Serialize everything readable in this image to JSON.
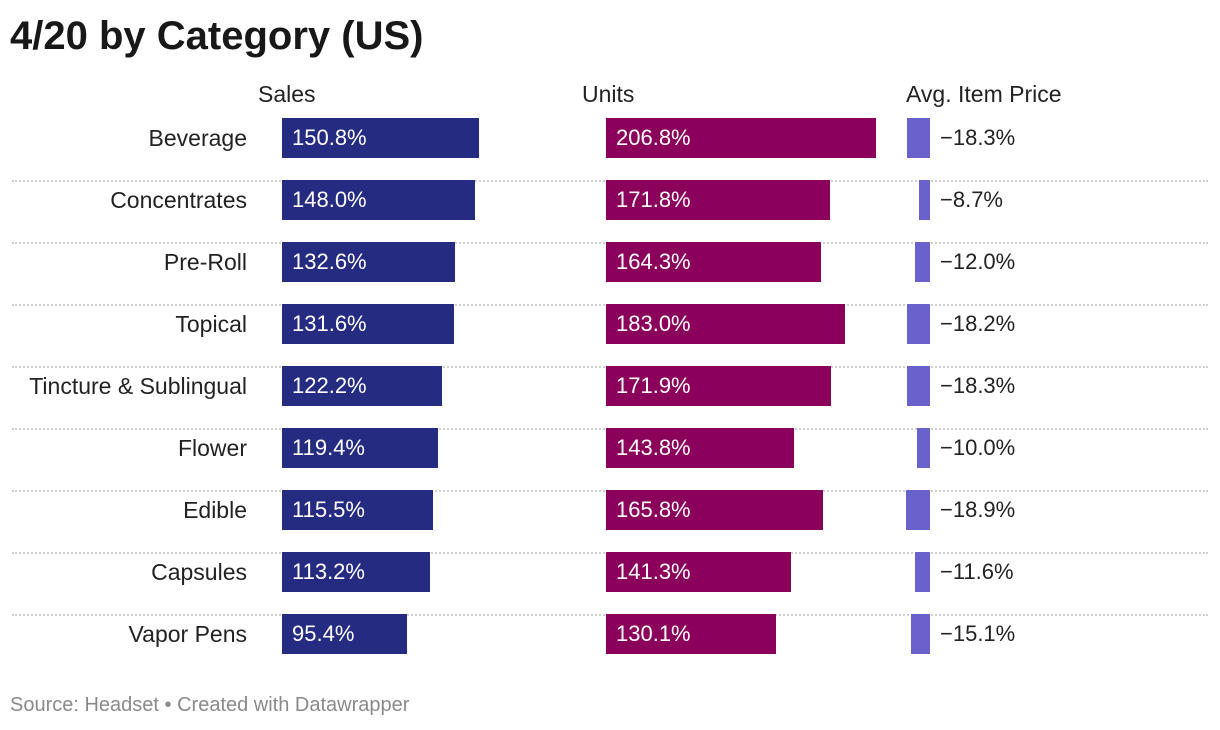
{
  "title": "4/20 by Category (US)",
  "footer": "Source: Headset • Created with Datawrapper",
  "colors": {
    "sales": "#252b80",
    "units": "#8a005a",
    "price": "#6a62cc"
  },
  "chart_data": {
    "type": "bar",
    "title": "4/20 by Category (US)",
    "categories": [
      "Beverage",
      "Concentrates",
      "Pre-Roll",
      "Topical",
      "Tincture & Sublingual",
      "Flower",
      "Edible",
      "Capsules",
      "Vapor Pens"
    ],
    "series": [
      {
        "name": "Sales",
        "values": [
          150.8,
          148.0,
          132.6,
          131.6,
          122.2,
          119.4,
          115.5,
          113.2,
          95.4
        ],
        "labels": [
          "150.8%",
          "148.0%",
          "132.6%",
          "131.6%",
          "122.2%",
          "119.4%",
          "115.5%",
          "113.2%",
          "95.4%"
        ]
      },
      {
        "name": "Units",
        "values": [
          206.8,
          171.8,
          164.3,
          183.0,
          171.9,
          143.8,
          165.8,
          141.3,
          130.1
        ],
        "labels": [
          "206.8%",
          "171.8%",
          "164.3%",
          "183.0%",
          "171.9%",
          "143.8%",
          "165.8%",
          "141.3%",
          "130.1%"
        ]
      },
      {
        "name": "Avg. Item Price",
        "values": [
          -18.3,
          -8.7,
          -12.0,
          -18.2,
          -18.3,
          -10.0,
          -18.9,
          -11.6,
          -15.1
        ],
        "labels": [
          "−18.3%",
          "−8.7%",
          "−12.0%",
          "−18.2%",
          "−18.3%",
          "−10.0%",
          "−18.9%",
          "−11.6%",
          "−15.1%"
        ]
      }
    ],
    "value_unit": "%"
  }
}
